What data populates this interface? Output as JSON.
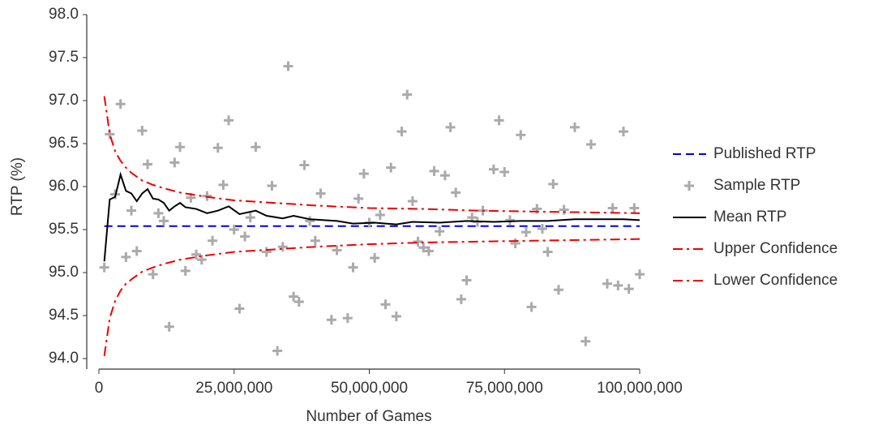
{
  "chart_data": {
    "type": "line",
    "xlabel": "Number of Games",
    "ylabel": "RTP (%)",
    "xlim": [
      0,
      100000000
    ],
    "xticks": [
      0,
      {
        "value": 25000000,
        "label": "25,000,000"
      },
      {
        "value": 50000000,
        "label": "50,000,000"
      },
      {
        "value": 75000000,
        "label": "75,000,000"
      },
      {
        "value": 100000000,
        "label": "100,000,000"
      }
    ],
    "ylim": [
      94,
      98
    ],
    "yticks": [
      {
        "value": 94,
        "label": "94.0"
      },
      94.5,
      {
        "value": 95,
        "label": "95.0"
      },
      95.5,
      {
        "value": 96,
        "label": "96.0"
      },
      96.5,
      {
        "value": 97,
        "label": "97.0"
      },
      97.5,
      {
        "value": 98,
        "label": "98.0"
      }
    ],
    "legend": "right",
    "series": [
      {
        "name": "Published RTP",
        "color": "#0000dd",
        "style": "dashed",
        "x": [
          1000000,
          100000000
        ],
        "values": [
          95.54,
          95.54
        ]
      },
      {
        "name": "Sample RTP",
        "color": "#aaaaaa",
        "style": "plus",
        "x": [
          1000000,
          2000000,
          3000000,
          4000000,
          5000000,
          6000000,
          7000000,
          8000000,
          9000000,
          10000000,
          11000000,
          12000000,
          13000000,
          14000000,
          15000000,
          16000000,
          17000000,
          18000000,
          19000000,
          20000000,
          21000000,
          22000000,
          23000000,
          24000000,
          25000000,
          26000000,
          27000000,
          28000000,
          29000000,
          31000000,
          32000000,
          33000000,
          34000000,
          35000000,
          36000000,
          37000000,
          38000000,
          39000000,
          40000000,
          41000000,
          43000000,
          44000000,
          46000000,
          47000000,
          48000000,
          49000000,
          50000000,
          51000000,
          52000000,
          53000000,
          54000000,
          55000000,
          56000000,
          57000000,
          58000000,
          59000000,
          60000000,
          61000000,
          62000000,
          63000000,
          64000000,
          65000000,
          66000000,
          67000000,
          68000000,
          69000000,
          70000000,
          71000000,
          73000000,
          74000000,
          75000000,
          76000000,
          77000000,
          78000000,
          79000000,
          80000000,
          81000000,
          82000000,
          83000000,
          84000000,
          85000000,
          86000000,
          88000000,
          90000000,
          91000000,
          94000000,
          95000000,
          96000000,
          97000000,
          98000000,
          99000000,
          100000000
        ],
        "values": [
          95.06,
          96.61,
          95.91,
          96.96,
          95.18,
          95.72,
          95.25,
          96.65,
          96.26,
          94.98,
          95.69,
          95.6,
          94.37,
          96.28,
          96.46,
          95.02,
          95.87,
          95.21,
          95.15,
          95.89,
          95.37,
          96.45,
          96.02,
          96.77,
          95.5,
          94.58,
          95.42,
          95.64,
          96.46,
          95.24,
          96.01,
          94.09,
          95.3,
          97.4,
          94.72,
          94.66,
          96.25,
          95.6,
          95.37,
          95.92,
          94.45,
          95.26,
          94.47,
          95.06,
          95.86,
          96.15,
          95.58,
          95.17,
          95.67,
          94.63,
          96.22,
          94.49,
          96.64,
          97.07,
          95.83,
          95.36,
          95.29,
          95.25,
          96.18,
          95.48,
          96.13,
          96.69,
          95.93,
          94.69,
          94.91,
          95.64,
          95.59,
          95.72,
          96.2,
          96.77,
          96.17,
          95.61,
          95.34,
          96.6,
          95.47,
          94.6,
          95.74,
          95.51,
          95.24,
          96.03,
          94.8,
          95.73,
          96.69,
          94.2,
          96.49,
          94.87,
          95.75,
          94.85,
          96.64,
          94.81,
          95.75,
          94.98
        ]
      },
      {
        "name": "Mean RTP",
        "color": "#000000",
        "style": "solid",
        "x": [
          1000000,
          2000000,
          3000000,
          4000000,
          5000000,
          6000000,
          7000000,
          8000000,
          9000000,
          10000000,
          11000000,
          12000000,
          13000000,
          14000000,
          15000000,
          16000000,
          18000000,
          20000000,
          22000000,
          24000000,
          26000000,
          29000000,
          31000000,
          34000000,
          36000000,
          39000000,
          44000000,
          47000000,
          51000000,
          55000000,
          58000000,
          63000000,
          68000000,
          73000000,
          78000000,
          83000000,
          88000000,
          93000000,
          97000000,
          100000000
        ],
        "values": [
          95.13,
          95.85,
          95.88,
          96.14,
          95.95,
          95.92,
          95.83,
          95.92,
          95.97,
          95.86,
          95.85,
          95.81,
          95.72,
          95.77,
          95.81,
          95.76,
          95.74,
          95.69,
          95.72,
          95.77,
          95.68,
          95.72,
          95.66,
          95.63,
          95.66,
          95.62,
          95.6,
          95.57,
          95.58,
          95.56,
          95.59,
          95.58,
          95.6,
          95.59,
          95.6,
          95.6,
          95.62,
          95.62,
          95.62,
          95.61
        ]
      },
      {
        "name": "Upper Confidence",
        "color": "#ee0000",
        "style": "dashdot",
        "x": [
          1000000,
          2000000,
          3000000,
          4000000,
          5000000,
          6000000,
          8000000,
          10000000,
          12000000,
          15000000,
          20000000,
          25000000,
          30000000,
          40000000,
          50000000,
          60000000,
          70000000,
          80000000,
          90000000,
          100000000
        ],
        "values": [
          97.05,
          96.61,
          96.41,
          96.3,
          96.22,
          96.16,
          96.07,
          96.02,
          95.98,
          95.93,
          95.88,
          95.84,
          95.82,
          95.78,
          95.75,
          95.74,
          95.72,
          95.71,
          95.7,
          95.69
        ]
      },
      {
        "name": "Lower Confidence",
        "color": "#ee0000",
        "style": "dashdot",
        "x": [
          1000000,
          2000000,
          3000000,
          4000000,
          5000000,
          6000000,
          8000000,
          10000000,
          12000000,
          15000000,
          20000000,
          25000000,
          30000000,
          40000000,
          50000000,
          60000000,
          70000000,
          80000000,
          90000000,
          100000000
        ],
        "values": [
          94.03,
          94.47,
          94.67,
          94.79,
          94.87,
          94.92,
          95.01,
          95.06,
          95.1,
          95.15,
          95.2,
          95.24,
          95.26,
          95.3,
          95.33,
          95.35,
          95.36,
          95.37,
          95.38,
          95.39
        ]
      }
    ]
  }
}
